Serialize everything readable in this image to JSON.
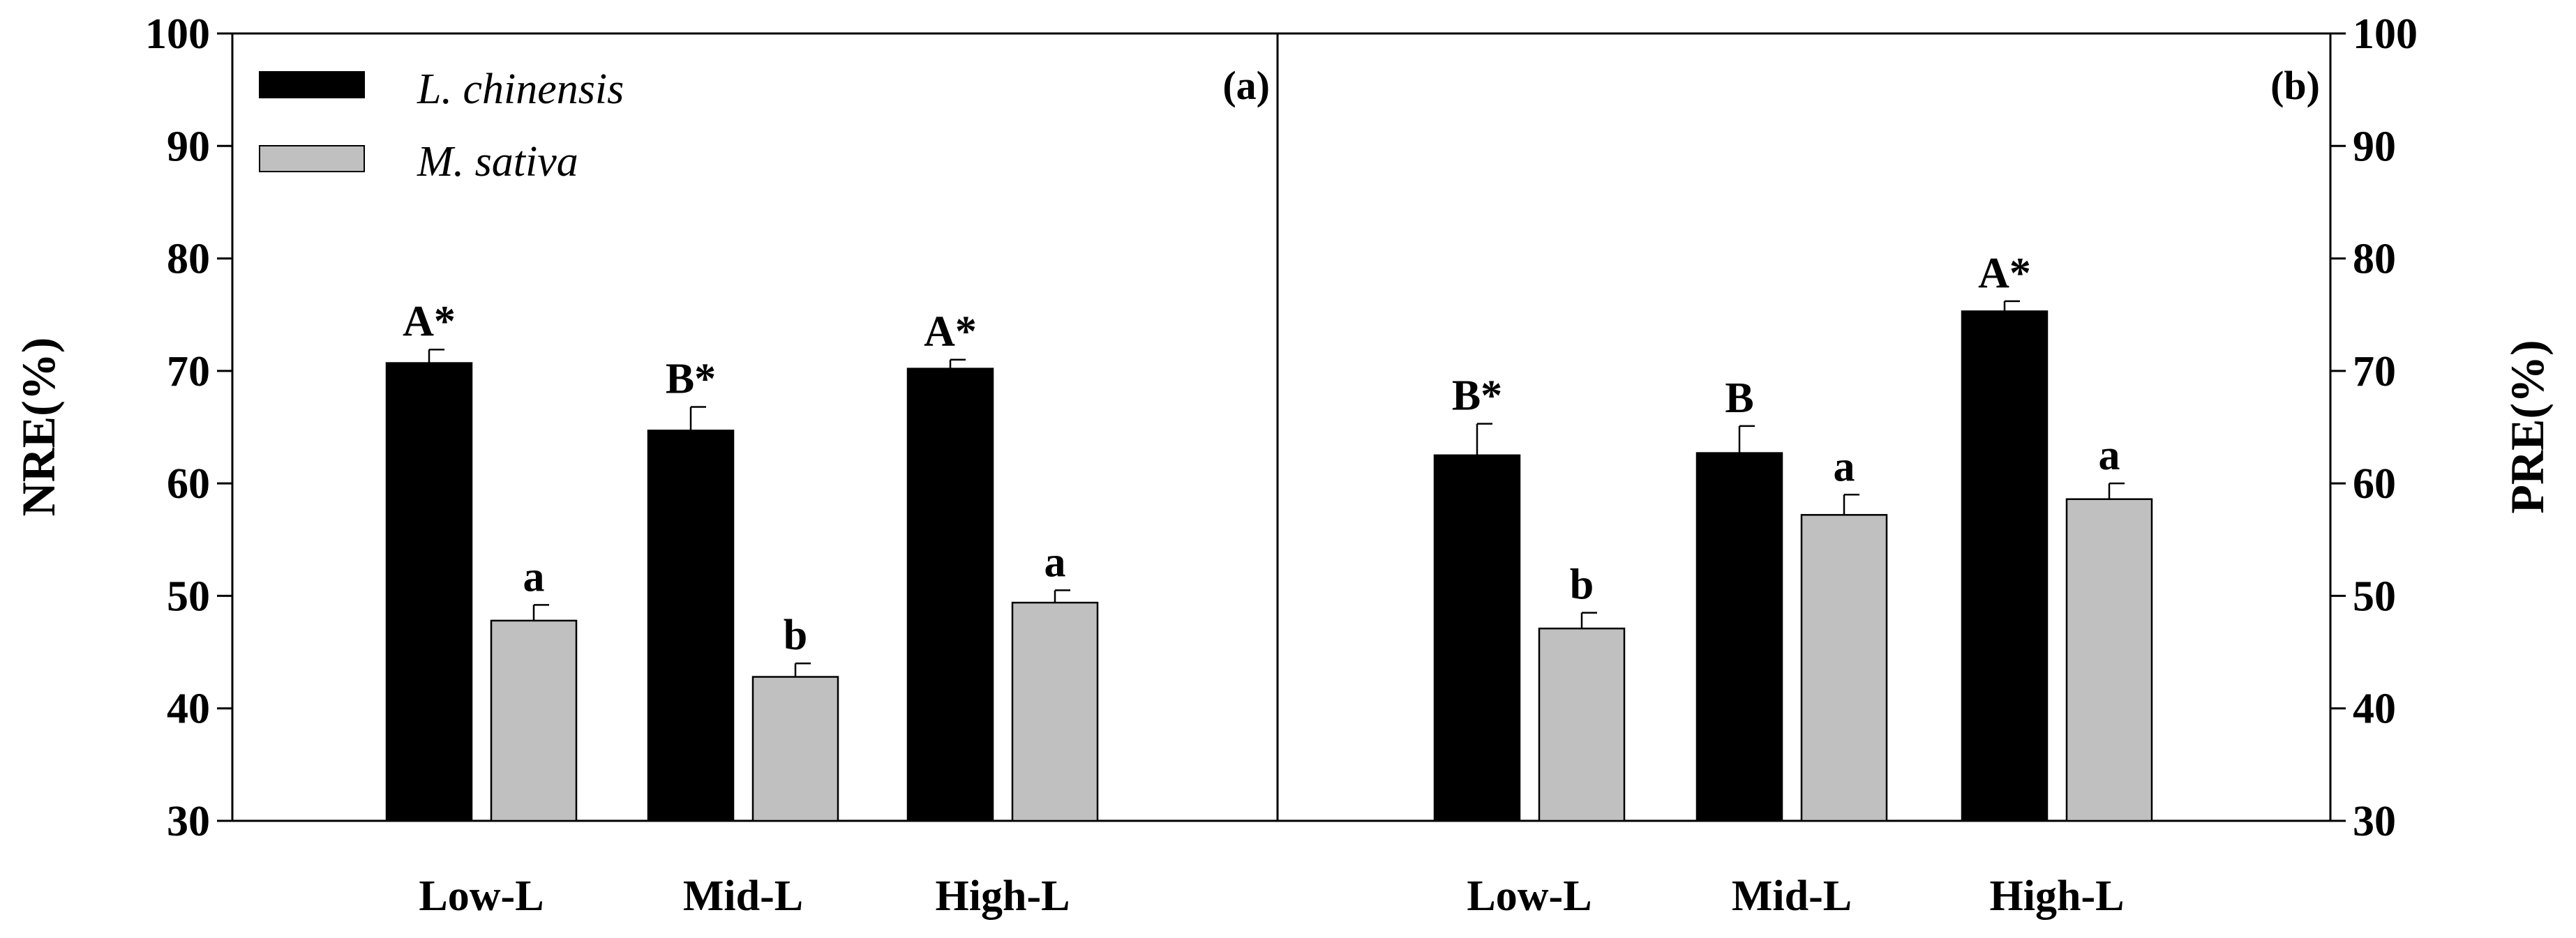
{
  "chart_data": [
    {
      "type": "bar",
      "panel_label": "(a)",
      "ylabel": "NRE(%)",
      "ylim": [
        30,
        100
      ],
      "yticks": [
        "30",
        "40",
        "50",
        "60",
        "70",
        "80",
        "90",
        "100"
      ],
      "categories": [
        "Low-L",
        "Mid-L",
        "High-L"
      ],
      "series": [
        {
          "name": "L. chinensis",
          "color": "#000000",
          "values": [
            70.7,
            64.7,
            70.2
          ],
          "errors": [
            1.2,
            2.1,
            0.8
          ],
          "labels": [
            "A*",
            "B*",
            "A*"
          ]
        },
        {
          "name": "M. sativa",
          "color": "#c0c0c0",
          "values": [
            47.8,
            42.8,
            49.4
          ],
          "errors": [
            1.4,
            1.2,
            1.1
          ],
          "labels": [
            "a",
            "b",
            "a"
          ]
        }
      ],
      "legend_position": "top-left"
    },
    {
      "type": "bar",
      "panel_label": "(b)",
      "ylabel": "PRE(%)",
      "ylim": [
        30,
        100
      ],
      "yticks": [
        "30",
        "40",
        "50",
        "60",
        "70",
        "80",
        "90",
        "100"
      ],
      "categories": [
        "Low-L",
        "Mid-L",
        "High-L"
      ],
      "series": [
        {
          "name": "L. chinensis",
          "color": "#000000",
          "values": [
            62.5,
            62.7,
            75.3
          ],
          "errors": [
            2.8,
            2.4,
            0.9
          ],
          "labels": [
            "B*",
            "B",
            "A*"
          ]
        },
        {
          "name": "M. sativa",
          "color": "#c0c0c0",
          "values": [
            47.1,
            57.2,
            58.6
          ],
          "errors": [
            1.4,
            1.8,
            1.4
          ],
          "labels": [
            "b",
            "",
            "a"
          ]
        }
      ],
      "extra_labels": [
        {
          "series": 1,
          "category": 1,
          "text": "a"
        }
      ]
    }
  ]
}
